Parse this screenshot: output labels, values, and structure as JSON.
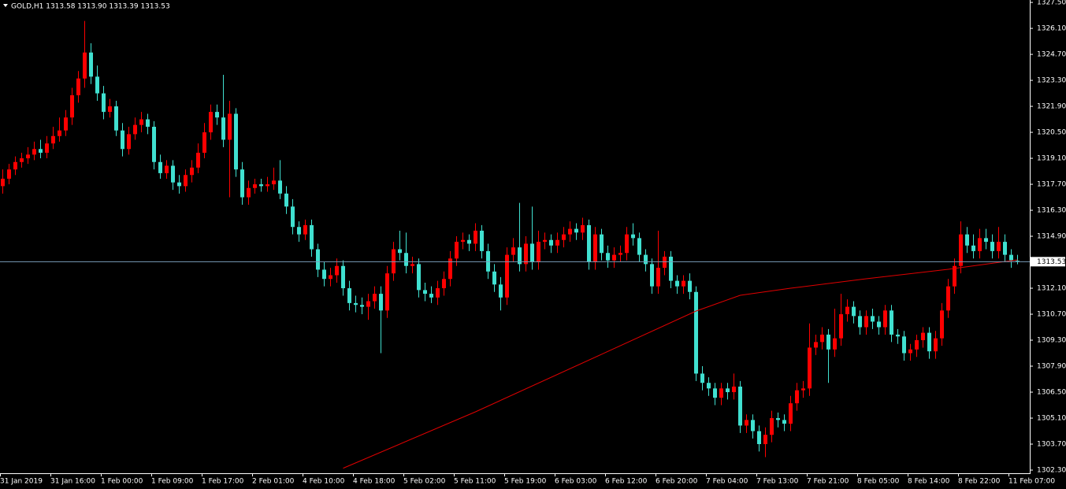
{
  "chart_data": {
    "type": "candlestick",
    "title": "GOLD,H1  1313.58 1313.90 1313.39 1313.53",
    "categories": [
      "31 Jan 2019",
      null,
      null,
      null,
      null,
      null,
      null,
      null,
      "31 Jan 16:00",
      null,
      null,
      null,
      null,
      null,
      null,
      null,
      "1 Feb 00:00",
      null,
      null,
      null,
      null,
      null,
      null,
      null,
      "1 Feb 09:00",
      null,
      null,
      null,
      null,
      null,
      null,
      null,
      "1 Feb 17:00",
      null,
      null,
      null,
      null,
      null,
      null,
      null,
      "2 Feb 01:00",
      null,
      null,
      null,
      null,
      null,
      null,
      null,
      "4 Feb 10:00",
      null,
      null,
      null,
      null,
      null,
      null,
      null,
      "4 Feb 18:00",
      null,
      null,
      null,
      null,
      null,
      null,
      null,
      "5 Feb 02:00",
      null,
      null,
      null,
      null,
      null,
      null,
      null,
      "5 Feb 11:00",
      null,
      null,
      null,
      null,
      null,
      null,
      null,
      "5 Feb 19:00",
      null,
      null,
      null,
      null,
      null,
      null,
      null,
      "6 Feb 03:00",
      null,
      null,
      null,
      null,
      null,
      null,
      null,
      "6 Feb 12:00",
      null,
      null,
      null,
      null,
      null,
      null,
      null,
      "6 Feb 20:00",
      null,
      null,
      null,
      null,
      null,
      null,
      null,
      "7 Feb 04:00",
      null,
      null,
      null,
      null,
      null,
      null,
      null,
      "7 Feb 13:00",
      null,
      null,
      null,
      null,
      null,
      null,
      null,
      "7 Feb 21:00",
      null,
      null,
      null,
      null,
      null,
      null,
      null,
      "8 Feb 05:00",
      null,
      null,
      null,
      null,
      null,
      null,
      null,
      "8 Feb 14:00",
      null,
      null,
      null,
      null,
      null,
      null,
      null,
      "8 Feb 22:00",
      null,
      null,
      null,
      null,
      null,
      null,
      null,
      "11 Feb 07:00",
      null
    ],
    "open": [
      1317.6,
      1318.0,
      1318.5,
      1318.9,
      1319.1,
      1319.3,
      1319.6,
      1319.4,
      1319.9,
      1320.3,
      1320.6,
      1321.3,
      1322.5,
      1323.4,
      1324.8,
      1323.5,
      1322.6,
      1321.6,
      1321.9,
      1320.6,
      1319.6,
      1320.4,
      1320.9,
      1321.2,
      1320.8,
      1318.9,
      1318.3,
      1318.7,
      1317.8,
      1317.6,
      1318.2,
      1318.6,
      1319.4,
      1320.5,
      1321.6,
      1321.3,
      1320.1,
      1321.5,
      1318.5,
      1317.0,
      1317.5,
      1317.7,
      1317.6,
      1317.7,
      1317.9,
      1317.2,
      1316.5,
      1315.4,
      1315.0,
      1315.5,
      1314.2,
      1313.1,
      1312.6,
      1312.8,
      1313.3,
      1312.1,
      1311.3,
      1311.2,
      1311.1,
      1311.4,
      1311.8,
      1310.9,
      1312.9,
      1314.2,
      1314.0,
      1313.3,
      1313.4,
      1312.0,
      1311.8,
      1311.6,
      1312.1,
      1312.6,
      1313.7,
      1314.6,
      1314.7,
      1314.5,
      1315.2,
      1314.1,
      1313.0,
      1312.3,
      1311.6,
      1313.9,
      1314.3,
      1313.4,
      1314.5,
      1313.5,
      1314.6,
      1314.7,
      1314.4,
      1314.7,
      1315.0,
      1315.3,
      1315.1,
      1315.5,
      1313.5,
      1315.0,
      1314.0,
      1313.6,
      1313.9,
      1314.0,
      1315.0,
      1314.8,
      1313.9,
      1313.4,
      1312.2,
      1313.2,
      1313.8,
      1312.5,
      1312.2,
      1312.5,
      1311.9,
      1307.5,
      1307.0,
      1306.7,
      1306.2,
      1306.7,
      1306.5,
      1306.8,
      1304.7,
      1305.0,
      1304.4,
      1303.7,
      1304.2,
      1305.1,
      1305.0,
      1304.8,
      1305.9,
      1306.6,
      1306.7,
      1308.9,
      1309.2,
      1309.6,
      1308.8,
      1309.4,
      1310.7,
      1311.1,
      1310.6,
      1310.0,
      1310.6,
      1310.3,
      1310.0,
      1310.9,
      1309.6,
      1309.5,
      1308.6,
      1308.8,
      1309.3,
      1309.7,
      1308.7,
      1309.4,
      1310.9,
      1312.2,
      1313.3,
      1315.0,
      1314.4,
      1314.1,
      1314.8,
      1314.6,
      1314.1,
      1314.6,
      1313.9,
      1313.58
    ],
    "high": [
      1318.5,
      1318.8,
      1319.2,
      1319.4,
      1319.7,
      1320.0,
      1320.1,
      1320.3,
      1320.8,
      1321.3,
      1321.7,
      1322.9,
      1323.8,
      1326.5,
      1325.3,
      1324.1,
      1323.0,
      1322.3,
      1322.2,
      1321.0,
      1320.8,
      1321.3,
      1321.6,
      1321.5,
      1321.1,
      1319.3,
      1319.0,
      1319.0,
      1318.2,
      1318.5,
      1319.0,
      1319.9,
      1321.0,
      1322.0,
      1322.0,
      1323.6,
      1322.2,
      1321.8,
      1318.9,
      1317.9,
      1318.0,
      1318.0,
      1318.1,
      1318.6,
      1319.0,
      1317.6,
      1316.9,
      1315.7,
      1315.8,
      1315.8,
      1314.5,
      1313.5,
      1313.2,
      1313.7,
      1313.6,
      1312.5,
      1311.7,
      1311.6,
      1311.8,
      1312.2,
      1312.2,
      1313.3,
      1314.6,
      1315.2,
      1315.1,
      1313.8,
      1313.7,
      1312.4,
      1312.2,
      1312.5,
      1313.0,
      1314.1,
      1314.9,
      1315.1,
      1315.0,
      1315.6,
      1315.5,
      1314.5,
      1313.4,
      1312.7,
      1314.3,
      1314.8,
      1316.7,
      1314.9,
      1316.5,
      1315.2,
      1315.1,
      1315.0,
      1315.1,
      1315.4,
      1315.7,
      1315.6,
      1315.9,
      1315.8,
      1315.4,
      1315.3,
      1314.4,
      1314.3,
      1314.4,
      1315.4,
      1315.6,
      1315.1,
      1314.2,
      1313.7,
      1315.2,
      1314.1,
      1314.1,
      1312.8,
      1312.8,
      1312.9,
      1312.2,
      1307.9,
      1307.3,
      1307.0,
      1307.0,
      1307.0,
      1307.5,
      1307.1,
      1305.3,
      1305.3,
      1304.7,
      1304.6,
      1305.5,
      1305.4,
      1305.3,
      1306.3,
      1307.0,
      1307.1,
      1310.2,
      1309.6,
      1310.0,
      1309.9,
      1311.0,
      1311.8,
      1311.5,
      1311.4,
      1310.9,
      1310.9,
      1311.0,
      1310.6,
      1311.2,
      1311.2,
      1309.9,
      1309.8,
      1309.1,
      1309.6,
      1310.0,
      1310.0,
      1309.8,
      1311.3,
      1312.6,
      1313.7,
      1315.7,
      1315.4,
      1315.0,
      1315.3,
      1315.3,
      1315.0,
      1315.4,
      1315.0,
      1314.2,
      1313.9
    ],
    "low": [
      1317.2,
      1317.7,
      1318.2,
      1318.6,
      1318.8,
      1319.0,
      1319.1,
      1319.1,
      1319.6,
      1320.0,
      1320.3,
      1320.9,
      1322.1,
      1322.9,
      1323.1,
      1322.2,
      1321.2,
      1321.3,
      1320.3,
      1319.2,
      1319.3,
      1320.1,
      1320.5,
      1320.4,
      1318.5,
      1318.0,
      1318.0,
      1317.4,
      1317.2,
      1317.3,
      1317.8,
      1318.3,
      1319.1,
      1320.1,
      1320.9,
      1319.7,
      1317.0,
      1318.1,
      1316.6,
      1316.6,
      1317.2,
      1317.3,
      1317.3,
      1317.4,
      1316.9,
      1316.1,
      1315.0,
      1314.6,
      1314.7,
      1313.8,
      1312.7,
      1312.2,
      1312.2,
      1312.4,
      1311.7,
      1310.9,
      1310.8,
      1310.7,
      1310.4,
      1311.0,
      1308.6,
      1310.5,
      1312.5,
      1313.6,
      1312.9,
      1312.9,
      1311.6,
      1311.4,
      1311.3,
      1311.2,
      1311.7,
      1312.2,
      1313.3,
      1314.2,
      1314.1,
      1314.1,
      1313.7,
      1312.6,
      1311.9,
      1310.9,
      1311.2,
      1313.5,
      1313.0,
      1313.0,
      1313.1,
      1313.1,
      1314.2,
      1314.0,
      1314.0,
      1314.3,
      1314.6,
      1314.7,
      1314.7,
      1313.1,
      1313.1,
      1313.6,
      1313.2,
      1313.2,
      1313.5,
      1313.6,
      1314.4,
      1313.5,
      1313.0,
      1311.8,
      1311.8,
      1312.8,
      1312.1,
      1311.8,
      1311.8,
      1311.5,
      1307.1,
      1306.6,
      1306.3,
      1305.8,
      1305.8,
      1306.1,
      1306.1,
      1304.3,
      1304.3,
      1304.0,
      1303.3,
      1303.0,
      1303.8,
      1304.6,
      1304.4,
      1304.4,
      1305.5,
      1306.2,
      1306.3,
      1308.5,
      1308.8,
      1307.0,
      1308.4,
      1309.0,
      1310.3,
      1310.2,
      1309.6,
      1309.6,
      1309.9,
      1309.6,
      1309.6,
      1309.2,
      1309.1,
      1308.2,
      1308.2,
      1308.4,
      1308.9,
      1308.3,
      1308.3,
      1309.0,
      1310.5,
      1311.8,
      1312.9,
      1314.0,
      1313.7,
      1313.7,
      1314.2,
      1313.7,
      1313.7,
      1313.5,
      1313.2,
      1313.39
    ],
    "close": [
      1318.0,
      1318.5,
      1318.9,
      1319.1,
      1319.3,
      1319.6,
      1319.4,
      1319.9,
      1320.3,
      1320.6,
      1321.3,
      1322.5,
      1323.4,
      1324.8,
      1323.5,
      1322.6,
      1321.6,
      1321.9,
      1320.6,
      1319.6,
      1320.4,
      1320.9,
      1321.2,
      1320.8,
      1318.9,
      1318.3,
      1318.7,
      1317.8,
      1317.6,
      1318.2,
      1318.6,
      1319.4,
      1320.5,
      1321.6,
      1321.3,
      1320.1,
      1321.5,
      1318.5,
      1317.0,
      1317.5,
      1317.7,
      1317.6,
      1317.7,
      1317.9,
      1317.2,
      1316.5,
      1315.4,
      1315.0,
      1315.5,
      1314.2,
      1313.1,
      1312.6,
      1312.8,
      1313.3,
      1312.1,
      1311.3,
      1311.2,
      1311.1,
      1311.4,
      1311.8,
      1310.9,
      1312.9,
      1314.2,
      1314.0,
      1313.3,
      1313.4,
      1312.0,
      1311.8,
      1311.6,
      1312.1,
      1312.6,
      1313.7,
      1314.6,
      1314.7,
      1314.5,
      1315.2,
      1314.1,
      1313.0,
      1312.3,
      1311.6,
      1313.9,
      1314.3,
      1313.4,
      1314.5,
      1313.5,
      1314.6,
      1314.7,
      1314.4,
      1314.7,
      1315.0,
      1315.3,
      1315.1,
      1315.5,
      1313.5,
      1315.0,
      1314.0,
      1313.6,
      1313.9,
      1314.0,
      1315.0,
      1314.8,
      1313.9,
      1313.4,
      1312.2,
      1313.2,
      1313.8,
      1312.5,
      1312.2,
      1312.5,
      1311.9,
      1307.5,
      1307.0,
      1306.7,
      1306.2,
      1306.7,
      1306.5,
      1306.8,
      1304.7,
      1305.0,
      1304.4,
      1303.7,
      1304.2,
      1305.1,
      1305.0,
      1304.8,
      1305.9,
      1306.6,
      1306.7,
      1308.9,
      1309.2,
      1309.6,
      1308.8,
      1309.4,
      1310.7,
      1311.1,
      1310.6,
      1310.0,
      1310.6,
      1310.3,
      1310.0,
      1310.9,
      1309.6,
      1309.5,
      1308.6,
      1308.8,
      1309.3,
      1309.7,
      1308.7,
      1309.4,
      1310.9,
      1312.2,
      1313.3,
      1315.0,
      1314.4,
      1314.1,
      1314.8,
      1314.6,
      1314.1,
      1314.6,
      1313.9,
      1313.6,
      1313.53
    ],
    "up_color": "#ff0000",
    "down_color": "#40e0d0",
    "moving_average": {
      "x": [
        54,
        75,
        95,
        110,
        117,
        125,
        137,
        150,
        161
      ],
      "values": [
        1302.4,
        1305.44,
        1308.54,
        1310.87,
        1311.72,
        1312.1,
        1312.61,
        1313.12,
        1313.63
      ],
      "color": "#e00000"
    },
    "price_line_color": "#7a9cb8",
    "ylim": [
      1302.13,
      1327.63
    ],
    "yticks": [
      {
        "value": 1302.3,
        "label": "1302.30"
      },
      {
        "value": 1303.7,
        "label": "1303.70"
      },
      {
        "value": 1305.1,
        "label": "1305.10"
      },
      {
        "value": 1306.5,
        "label": "1306.50"
      },
      {
        "value": 1307.9,
        "label": "1307.90"
      },
      {
        "value": 1309.3,
        "label": "1309.30"
      },
      {
        "value": 1310.7,
        "label": "1310.70"
      },
      {
        "value": 1312.1,
        "label": "1312.10"
      },
      {
        "value": 1314.9,
        "label": "1314.90"
      },
      {
        "value": 1316.3,
        "label": "1316.30"
      },
      {
        "value": 1317.7,
        "label": "1317.70"
      },
      {
        "value": 1319.1,
        "label": "1319.10"
      },
      {
        "value": 1320.5,
        "label": "1320.50"
      },
      {
        "value": 1321.9,
        "label": "1321.90"
      },
      {
        "value": 1323.3,
        "label": "1323.30"
      },
      {
        "value": 1324.7,
        "label": "1324.70"
      },
      {
        "value": 1326.1,
        "label": "1326.10"
      },
      {
        "value": 1327.5,
        "label": "1327.50"
      }
    ],
    "grid": false
  }
}
